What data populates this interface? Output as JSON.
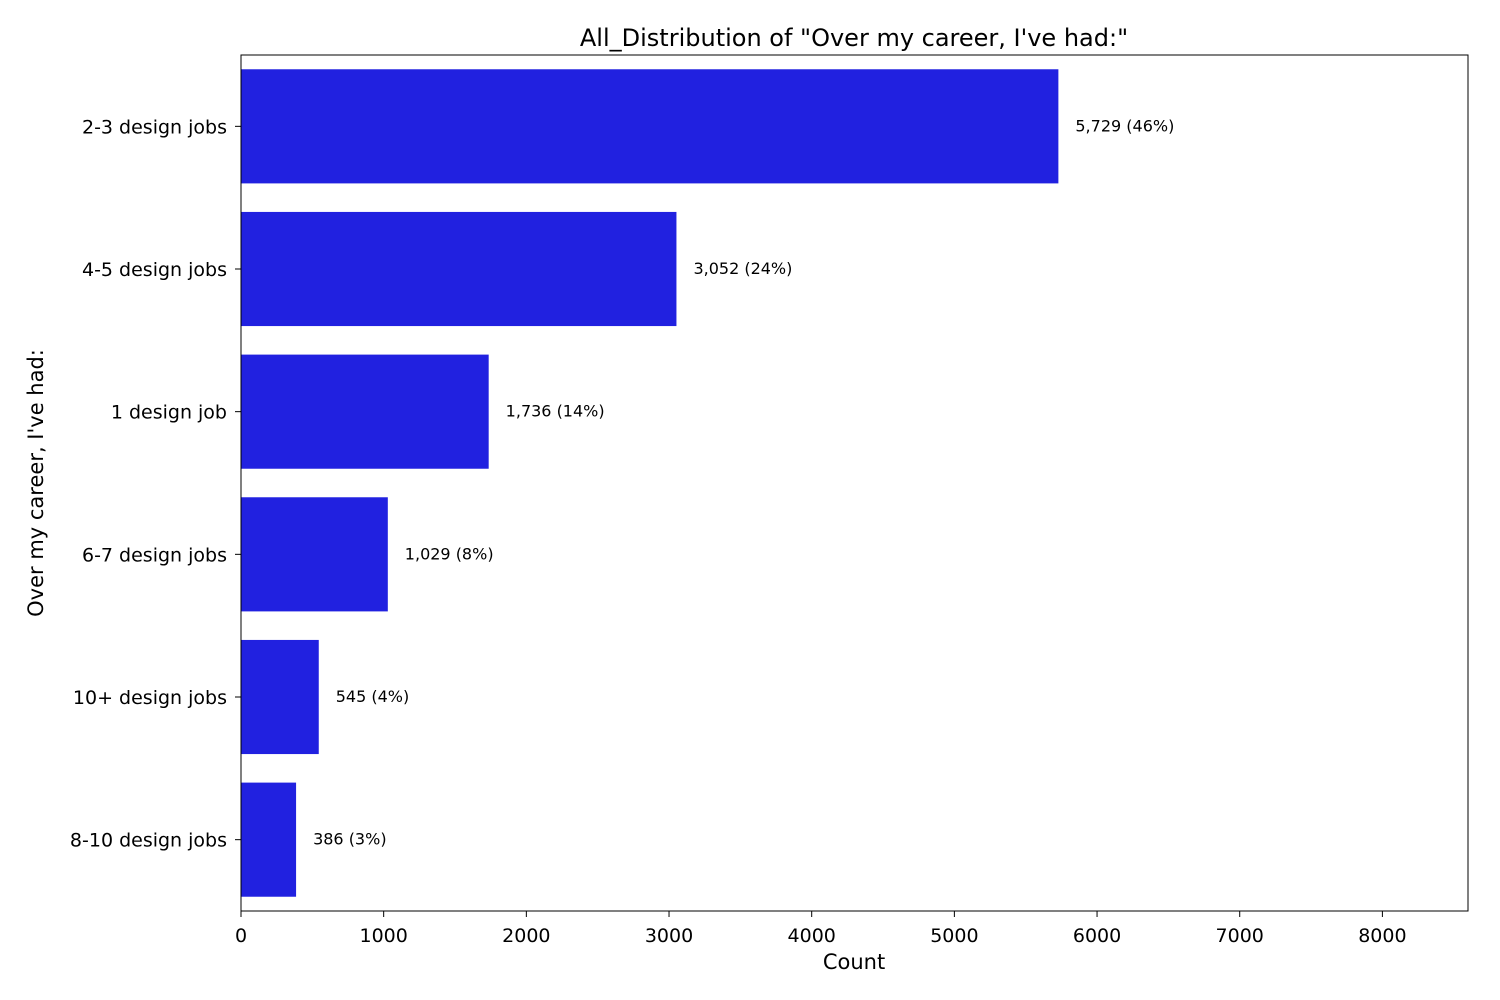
{
  "chart_data": {
    "type": "bar",
    "orientation": "horizontal",
    "title": "All_Distribution of \"Over my career, I've had:\"",
    "xlabel": "Count",
    "ylabel": "Over my career, I've had:",
    "categories": [
      "2-3 design jobs",
      "4-5 design jobs",
      "1 design job",
      "6-7 design jobs",
      "10+ design jobs",
      "8-10 design jobs"
    ],
    "values": [
      5729,
      3052,
      1736,
      1029,
      545,
      386
    ],
    "data_labels": [
      "5,729 (46%)",
      "3,052 (24%)",
      "1,736 (14%)",
      "1,029 (8%)",
      "545 (4%)",
      "386 (3%)"
    ],
    "xlim": [
      0,
      8600
    ],
    "xticks": [
      0,
      1000,
      2000,
      3000,
      4000,
      5000,
      6000,
      7000,
      8000
    ],
    "grid": false,
    "legend": "none",
    "bar_color": "#2121e0"
  }
}
